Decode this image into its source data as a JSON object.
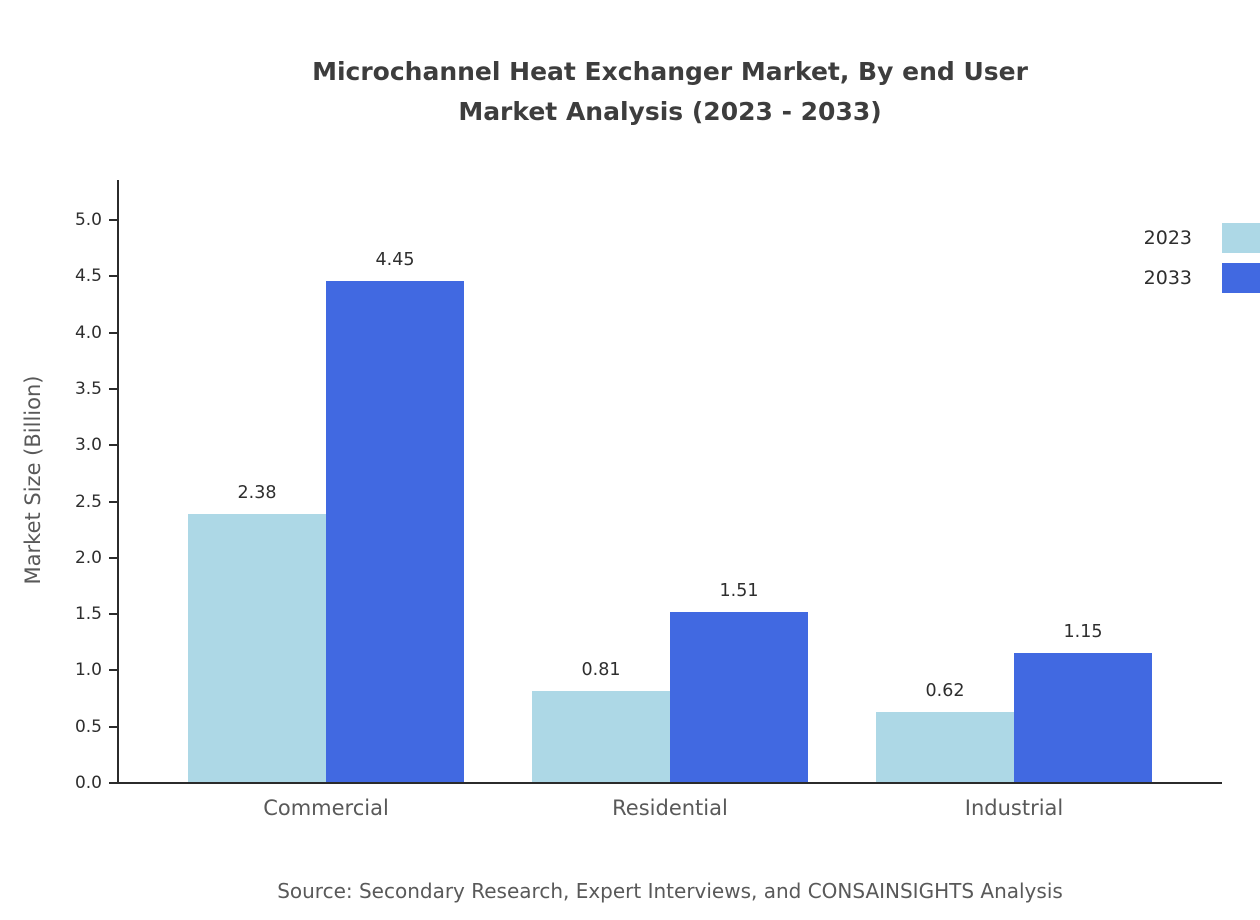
{
  "title": {
    "line1": "Microchannel Heat Exchanger Market, By end User",
    "line2": "Market Analysis (2023 - 2033)"
  },
  "source": "Source: Secondary Research, Expert Interviews, and CONSAINSIGHTS Analysis",
  "chart_data": {
    "type": "bar",
    "categories": [
      "Commercial",
      "Residential",
      "Industrial"
    ],
    "series": [
      {
        "name": "2023",
        "color": "#add8e6",
        "values": [
          2.38,
          0.81,
          0.62
        ]
      },
      {
        "name": "2033",
        "color": "#4169e1",
        "values": [
          4.45,
          1.51,
          1.15
        ]
      }
    ],
    "title": "Microchannel Heat Exchanger Market, By end User Market Analysis (2023 - 2033)",
    "xlabel": "",
    "ylabel": "Market Size (Billion)",
    "ylim": [
      0,
      5.0
    ],
    "ytick_step": 0.5,
    "grid": false,
    "legend_position": "top-right"
  }
}
